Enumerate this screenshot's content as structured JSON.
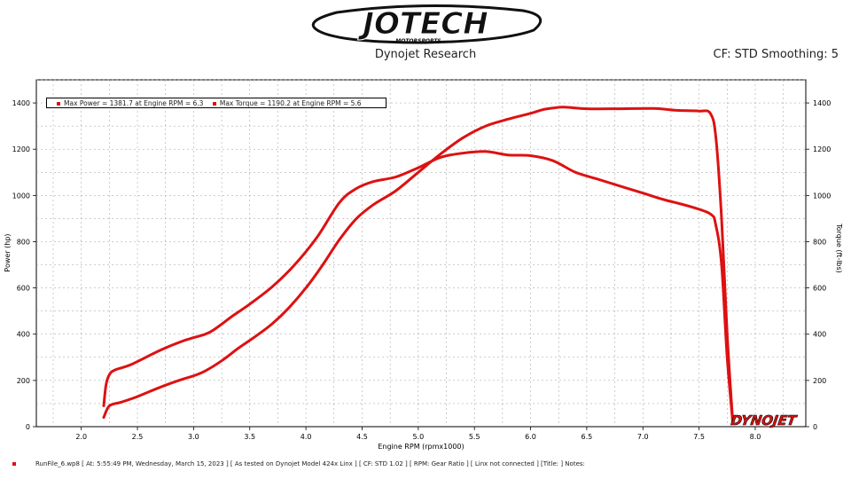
{
  "header": {
    "logo_text": "JOTECH",
    "logo_subtext": "MOTORSPORTS",
    "subtitle": "Dynojet Research",
    "cf_text": "CF: STD Smoothing: 5"
  },
  "legend": {
    "power": "Max Power = 1381.7 at Engine RPM = 6.3",
    "torque": "Max Torque = 1190.2 at Engine RPM = 5.6"
  },
  "brand_logo": "DYNOJET",
  "footer": {
    "text": "RunFile_6.wp8  [ At:  5:55:49 PM, Wednesday, March 15, 2023 ]  [ As tested on Dynojet Model 424x Linx ]  [ CF: STD 1.02 ]  [ RPM: Gear Ratio ]  [ Linx not connected ]  [Title: ]   Notes:"
  },
  "colors": {
    "series": "#dd1111",
    "grid": "#999999",
    "brand": "#dd1111"
  },
  "chart_data": {
    "type": "line",
    "xlabel": "Engine RPM (rpmx1000)",
    "ylabel": "Power (hp)",
    "y2label": "Torque (ft-lbs)",
    "xlim": [
      1.6,
      8.45
    ],
    "ylim": [
      0,
      1500
    ],
    "x_ticks": [
      "2.0",
      "2.5",
      "3.0",
      "3.5",
      "4.0",
      "4.5",
      "5.0",
      "5.5",
      "6.0",
      "6.5",
      "7.0",
      "7.5",
      "8.0"
    ],
    "y_ticks": [
      "0",
      "200",
      "400",
      "600",
      "800",
      "1000",
      "1200",
      "1400"
    ],
    "y2_ticks": [
      "0",
      "200",
      "400",
      "600",
      "800",
      "1000",
      "1200",
      "1400"
    ],
    "grid": true,
    "legend_position": "top-left",
    "series": [
      {
        "name": "Power",
        "x": [
          2.2,
          2.25,
          2.35,
          2.5,
          2.7,
          2.9,
          3.0,
          3.1,
          3.25,
          3.4,
          3.55,
          3.7,
          3.85,
          4.0,
          4.15,
          4.3,
          4.45,
          4.6,
          4.8,
          5.0,
          5.2,
          5.4,
          5.6,
          5.8,
          6.0,
          6.1,
          6.2,
          6.3,
          6.5,
          6.8,
          7.1,
          7.3,
          7.5,
          7.6,
          7.65,
          7.7,
          7.75,
          7.8
        ],
        "y": [
          40,
          90,
          105,
          130,
          170,
          205,
          220,
          240,
          285,
          340,
          390,
          445,
          515,
          600,
          700,
          810,
          900,
          960,
          1020,
          1100,
          1180,
          1250,
          1300,
          1330,
          1355,
          1370,
          1378,
          1381.7,
          1375,
          1375,
          1376,
          1368,
          1365,
          1355,
          1250,
          900,
          400,
          20
        ]
      },
      {
        "name": "Torque",
        "x": [
          2.2,
          2.22,
          2.25,
          2.3,
          2.45,
          2.7,
          2.9,
          3.0,
          3.15,
          3.35,
          3.5,
          3.7,
          3.9,
          4.1,
          4.3,
          4.45,
          4.6,
          4.8,
          5.0,
          5.2,
          5.4,
          5.6,
          5.8,
          6.0,
          6.2,
          6.4,
          6.6,
          6.8,
          7.0,
          7.2,
          7.4,
          7.6,
          7.65,
          7.7,
          7.75,
          7.8
        ],
        "y": [
          90,
          180,
          225,
          245,
          270,
          330,
          370,
          385,
          410,
          480,
          530,
          605,
          700,
          820,
          970,
          1030,
          1060,
          1080,
          1120,
          1165,
          1183,
          1190.2,
          1175,
          1172,
          1150,
          1100,
          1070,
          1040,
          1010,
          980,
          955,
          920,
          870,
          700,
          300,
          20
        ]
      }
    ]
  }
}
